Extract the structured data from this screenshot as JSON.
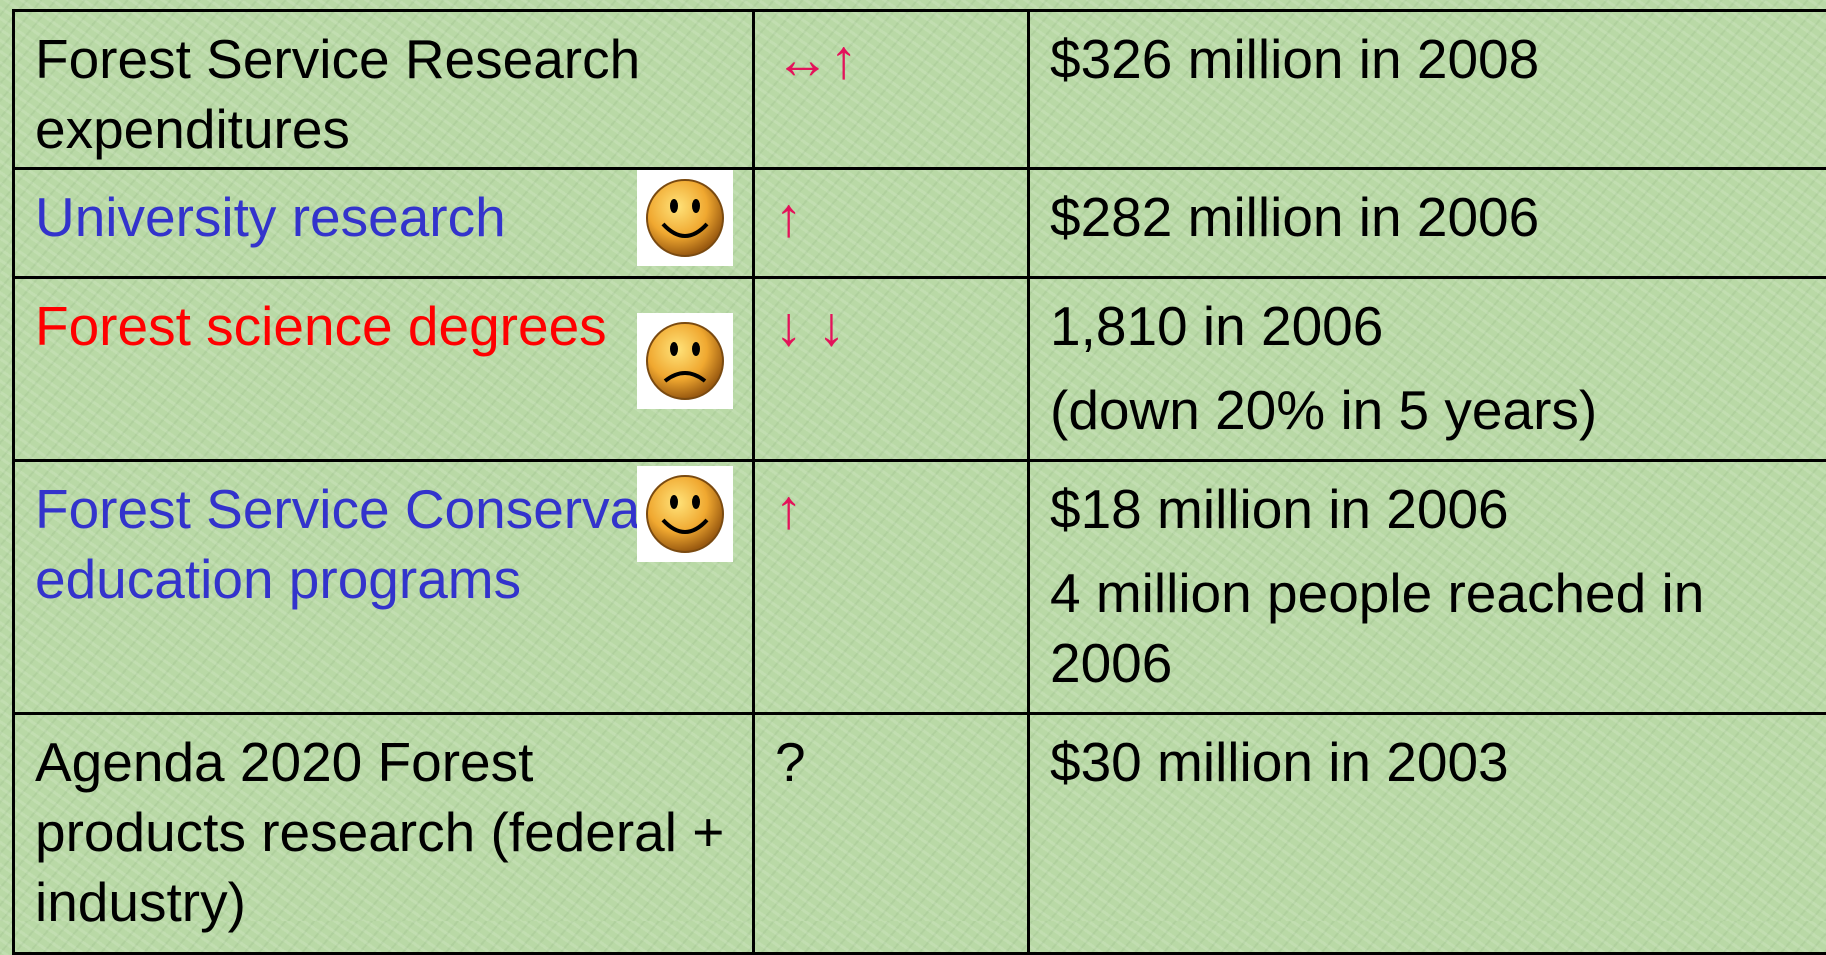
{
  "table": {
    "rows": [
      {
        "label": "Forest Service Research expenditures",
        "trend": "↔↑",
        "values": [
          "$326 million in 2008"
        ]
      },
      {
        "label": "University research",
        "trend": "↑",
        "values": [
          "$282 million in 2006"
        ]
      },
      {
        "label": "Forest science degrees",
        "trend": "↓ ↓",
        "values": [
          "1,810 in 2006",
          "(down 20% in 5 years)"
        ]
      },
      {
        "label": "Forest Service Conservation education programs",
        "trend": "↑",
        "values": [
          "$18 million in 2006",
          "4 million people reached in 2006"
        ]
      },
      {
        "label": "Agenda 2020 Forest products research (federal + industry)",
        "trend": "?",
        "values": [
          "$30 million in 2003"
        ]
      }
    ]
  }
}
